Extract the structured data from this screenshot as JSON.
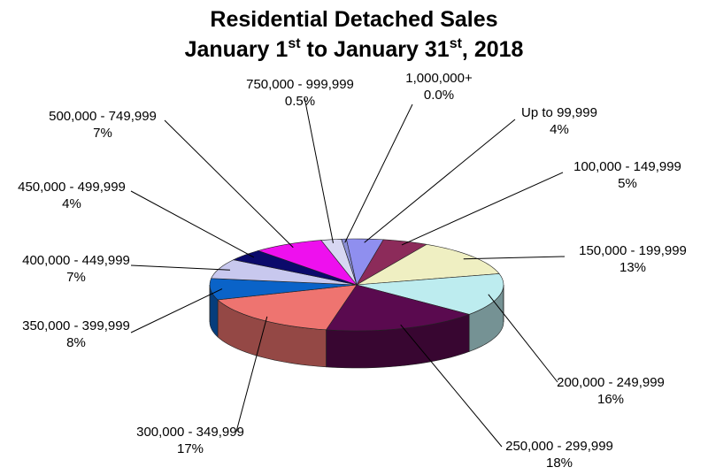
{
  "chart_data": {
    "type": "pie",
    "title_line1": "Residential Detached Sales",
    "title_line2": {
      "month_a": "January 1",
      "sup_a": "st",
      "mid": " to January 31",
      "sup_b": "st",
      "end": ", 2018"
    },
    "slices": [
      {
        "label": "1,000,000+",
        "value_text": "0.0%",
        "value": 0.0,
        "color": "#8b8fd6"
      },
      {
        "label": "Up to 99,999",
        "value_text": "4%",
        "value": 4,
        "color": "#8f8fef"
      },
      {
        "label": "100,000 - 149,999",
        "value_text": "5%",
        "value": 5,
        "color": "#8c2b5a"
      },
      {
        "label": "150,000 - 199,999",
        "value_text": "13%",
        "value": 13,
        "color": "#efefc2"
      },
      {
        "label": "200,000 - 249,999",
        "value_text": "16%",
        "value": 16,
        "color": "#bdecef"
      },
      {
        "label": "250,000 - 299,999",
        "value_text": "18%",
        "value": 18,
        "color": "#5a0a4f"
      },
      {
        "label": "300,000 - 349,999",
        "value_text": "17%",
        "value": 17,
        "color": "#ee7470"
      },
      {
        "label": "350,000 - 399,999",
        "value_text": "8%",
        "value": 8,
        "color": "#0a63c8"
      },
      {
        "label": "400,000 - 449,999",
        "value_text": "7%",
        "value": 7,
        "color": "#c8c8ee"
      },
      {
        "label": "450,000 - 499,999",
        "value_text": "4%",
        "value": 4,
        "color": "#0b0a6b"
      },
      {
        "label": "500,000 - 749,999",
        "value_text": "7%",
        "value": 7,
        "color": "#ee10ee"
      },
      {
        "label": "750,000 - 999,999",
        "value_text": "0.5%",
        "value": 0.5,
        "color": "#d7d7f2"
      }
    ]
  }
}
